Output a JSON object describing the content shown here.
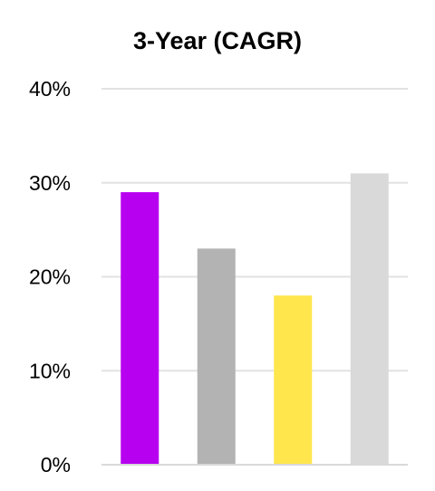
{
  "chart_data": {
    "type": "bar",
    "title": "3-Year (CAGR)",
    "categories": [
      "",
      "",
      "",
      ""
    ],
    "values": [
      29,
      23,
      18,
      31
    ],
    "colors": [
      "#b700f0",
      "#b3b3b3",
      "#ffe64d",
      "#d9d9d9"
    ],
    "ylim": [
      0,
      40
    ],
    "yticks": [
      "0%",
      "10%",
      "20%",
      "30%",
      "40%"
    ],
    "ytick_values": [
      0,
      10,
      20,
      30,
      40
    ],
    "grid": true,
    "legend": "none"
  }
}
